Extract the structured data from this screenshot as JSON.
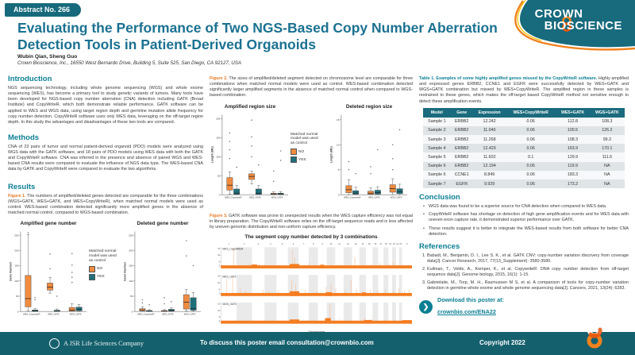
{
  "badge": "Abstract No. 266",
  "logo": {
    "line1": "CROWN",
    "line2": "BIOSCIENCE"
  },
  "title": "Evaluating the Performance of Two NGS-Based Copy Number Aberration Detection Tools in Patient-Derived Organoids",
  "authors": "Wubin Qian, Sheng Guo",
  "affiliation": "Crown Bioscience, Inc., 16550 West Bernardo Drive, Building 5, Suite 525, San Diego, CA 92127, USA",
  "sections": {
    "introduction": {
      "heading": "Introduction",
      "body": "NGS sequencing technology, including whole genome sequencing (WGS) and whole exome sequencing (WES), has become a primary tool to study genetic variants of tumors. Many tools have been developed for NGS-based copy number aberration (CNA) detection including GATK (Broad Institute) and CopyWriteR, which both demonstrate reliable performance. GATK software can be applied to WES and WGS data, using target region depth and germline mutation allele frequency for copy number detection. CopyWriteR software uses only WES data, leveraging on the off-target region depth. In this study the advantages and disadvantages of these two tools are compared."
    },
    "methods": {
      "heading": "Methods",
      "body": "CNA of 23 pairs of tumor and normal patient-derived organoid (PDO) models were analyzed using WGS data with the GATK software, and 18 pairs of PDO models using WES data with both the GATK and CopyWriteR software. CNA was inferred in the presence and absence of paired WGS and WES-based CNA results were compared to evaluate the influence of NGS data type. The WES-based CNA data by GATK and CopyWriteR were compared to evaluate the two algorithms."
    },
    "results": {
      "heading": "Results"
    },
    "conclusion": {
      "heading": "Conclusion",
      "bullets": [
        "WGS data was found to be a superior source for CNA detection when compared to WES data.",
        "CopyWriteR software has shortage on detection of high gene amplification events and for WES data with uneven exon capture rate, it demonstrated superior performance over GATK.",
        "These results suggest it is better to integrate the WES-based results from both software for better CNA detection."
      ]
    },
    "references": {
      "heading": "References",
      "items": [
        "Babadi, M., Benjamin, D. I., Lee S. K., et al. GATK CNV: copy-number variation discovery from coverage data[J]. Cancer Research, 2017, 77(13_Supplement): 3580-3580.",
        "Kuilman, T., Velds, A., Kemper, K., et al. CopywriteR: DNA copy number detection from off-target sequence data[J]. Genome biology, 2015, 16(1): 1-15.",
        "Gabrielaite, M., Torp, M. H., Rasmussen M S, et al. A comparison of tools for copy-number variation detection in germline whole exome and whole genome sequencing data[J]. Cancers, 2021, 13(24): 6283."
      ]
    }
  },
  "figure1": {
    "label": "Figure 1.",
    "caption": "The numbers of amplified/deleted genes detected are comparable for the three combinations (WGS+GATK, WES+GATK, and WES+CopyWriteR), when matched normal models were used as control. WES-based combination detected significantly more amplified genes in the absence of matched normal control, compared to WGS-based combination."
  },
  "figure2": {
    "label": "Figure 2.",
    "caption": "The sizes of amplified/deleted segment detected on chromosome level are comparable for three combinations when matched normal models were used as control. WES-based combination detected significantly larger amplified segments in the absence of matched normal control when compared to WGS-based combination."
  },
  "figure3": {
    "label": "Figure 3.",
    "caption": "GATK software was prone to unexpected results when the WES capture efficiency was not equal in library preparation. The CopyWriteR software relies on the off-target sequence reads and is less affected by uneven genomic distribution and non-uniform capture efficiency."
  },
  "legend": {
    "title": "Matched normal model was used as control",
    "no": "NO",
    "yes": "YES",
    "no_color": "#f08b3f",
    "yes_color": "#1f6f7b"
  },
  "table1": {
    "caption_bold": "Table 1. Examples of some highly amplified genes missed by the CopyWriteR software.",
    "caption_rest": " Highly amplified and expressed genes ERBB2, CCNE1 and EGFR were successfully detected by WES+GATK and WGS+GATK combination but missed by WES+CopyWriteR. The amplified region in these samples is restrained to these genes, which makes the off-target based CopyWriteR method not sensitive enough to detect these amplification events.",
    "headers": [
      "Model",
      "Gene",
      "Expression",
      "WES+CopyWriteR",
      "WES+GATK",
      "WGS+GATK"
    ],
    "rows": [
      [
        "Sample 1",
        "ERBB2",
        "12.242",
        "0.06",
        "112.8",
        "108.3"
      ],
      [
        "Sample 2",
        "ERBB2",
        "11.046",
        "0.06",
        "109.5",
        "126.2"
      ],
      [
        "Sample 3",
        "ERBB2",
        "11.268",
        "0.06",
        "108.3",
        "99.3"
      ],
      [
        "Sample 4",
        "ERBB2",
        "12.429",
        "0.06",
        "163.9",
        "170.1"
      ],
      [
        "Sample 5",
        "ERBB2",
        "11.602",
        "0.1",
        "129.9",
        "111.6"
      ],
      [
        "Sample 6",
        "ERBB2",
        "12.194",
        "0.06",
        "119.9",
        "NA"
      ],
      [
        "Sample 6",
        "CCNE1",
        "8.849",
        "0.06",
        "183.3",
        "NA"
      ],
      [
        "Sample 7",
        "EGFR",
        "9.929",
        "0.06",
        "173.2",
        "NA"
      ]
    ]
  },
  "download": {
    "line1": "Download this poster at:",
    "link": "crownbio.com/ENA22"
  },
  "footer": {
    "company": "A JSR Life Sciences Company",
    "contact": "To discuss this poster email consultation@crownbio.com",
    "copyright": "Copyright 2022"
  },
  "colors": {
    "teal_dark": "#15606d",
    "teal_heading": "#0b7f93",
    "title_blue": "#1b7191",
    "orange": "#f08b3f",
    "segment_orange": "#f47d21"
  },
  "chart_data": [
    {
      "id": "fig1-amplified",
      "type": "boxplot",
      "title": "Amplified gene number",
      "ylabel": "Gene Number",
      "ylim": [
        0,
        262
      ],
      "yticks": [
        0,
        50,
        100,
        150,
        200,
        250
      ],
      "categories": [
        "WES_CopywriteR",
        "WES_GATK",
        "WGS_GATK"
      ],
      "series": [
        {
          "name": "NO",
          "boxes": [
            {
              "lo": 2,
              "q1": 15,
              "med": 42,
              "q3": 118,
              "hi": 252
            },
            {
              "lo": 60,
              "q1": 70,
              "med": 80,
              "q3": 93,
              "hi": 112
            },
            {
              "lo": 0,
              "q1": 1,
              "med": 4,
              "q3": 13,
              "hi": 26
            }
          ]
        },
        {
          "name": "YES",
          "boxes": [
            {
              "lo": 0,
              "q1": 0,
              "med": 2,
              "q3": 5,
              "hi": 9
            },
            {
              "lo": 0,
              "q1": 0,
              "med": 1,
              "q3": 4,
              "hi": 8
            },
            {
              "lo": 0,
              "q1": 2,
              "med": 6,
              "q3": 14,
              "hi": 23
            }
          ]
        }
      ],
      "outliers": [
        [
          0,
          1,
          45
        ],
        [
          0,
          1,
          38
        ],
        [
          1,
          0,
          140
        ],
        [
          1,
          0,
          188
        ],
        [
          1,
          1,
          50
        ],
        [
          2,
          0,
          95
        ],
        [
          2,
          0,
          112
        ],
        [
          2,
          0,
          128
        ],
        [
          2,
          0,
          152
        ],
        [
          2,
          0,
          190
        ],
        [
          0,
          0,
          258
        ]
      ]
    },
    {
      "id": "fig1-deleted",
      "type": "boxplot",
      "title": "Deleted gene number",
      "ylabel": "Gene Number",
      "ylim": [
        0,
        262
      ],
      "yticks": [
        0,
        50,
        100,
        150,
        200,
        250
      ],
      "categories": [
        "WES_CopywriteR",
        "WES_GATK",
        "WGS_GATK"
      ],
      "series": [
        {
          "name": "NO",
          "boxes": [
            {
              "lo": 0,
              "q1": 2,
              "med": 5,
              "q3": 9,
              "hi": 15
            },
            {
              "lo": 0,
              "q1": 0,
              "med": 1,
              "q3": 3,
              "hi": 6
            },
            {
              "lo": 2,
              "q1": 8,
              "med": 30,
              "q3": 55,
              "hi": 72
            }
          ]
        },
        {
          "name": "YES",
          "boxes": [
            {
              "lo": 0,
              "q1": 0,
              "med": 1,
              "q3": 3,
              "hi": 6
            },
            {
              "lo": 0,
              "q1": 1,
              "med": 3,
              "q3": 7,
              "hi": 12
            },
            {
              "lo": 1,
              "q1": 4,
              "med": 10,
              "q3": 45,
              "hi": 62
            }
          ]
        }
      ],
      "outliers": [
        [
          0,
          0,
          28
        ],
        [
          0,
          0,
          38
        ],
        [
          1,
          0,
          25
        ],
        [
          1,
          1,
          32
        ],
        [
          2,
          0,
          182
        ],
        [
          2,
          0,
          232
        ],
        [
          2,
          1,
          150
        ],
        [
          0,
          1,
          22
        ],
        [
          1,
          0,
          45
        ]
      ]
    },
    {
      "id": "fig2-amplified",
      "type": "boxplot",
      "title": "Amplified region size",
      "ylabel": "Length (Mb)",
      "ylim": [
        0,
        210
      ],
      "yticks": [
        0,
        50,
        100,
        150,
        200
      ],
      "categories": [
        "WES_CopywriteR",
        "WES_GATK",
        "WGS_GATK"
      ],
      "series": [
        {
          "name": "NO",
          "boxes": [
            {
              "lo": 1,
              "q1": 12,
              "med": 25,
              "q3": 45,
              "hi": 60
            },
            {
              "lo": 28,
              "q1": 40,
              "med": 48,
              "q3": 55,
              "hi": 62
            },
            {
              "lo": 0,
              "q1": 0.5,
              "med": 2,
              "q3": 4,
              "hi": 8
            }
          ]
        },
        {
          "name": "YES",
          "boxes": [
            {
              "lo": 0,
              "q1": 1,
              "med": 4,
              "q3": 15,
              "hi": 24
            },
            {
              "lo": 0,
              "q1": 1,
              "med": 4,
              "q3": 15,
              "hi": 24
            },
            {
              "lo": 0,
              "q1": 0.5,
              "med": 2,
              "q3": 4,
              "hi": 8
            }
          ]
        }
      ],
      "outliers": [
        [
          0,
          0,
          95
        ],
        [
          0,
          0,
          118
        ],
        [
          0,
          0,
          140
        ],
        [
          0,
          0,
          162
        ],
        [
          1,
          0,
          100
        ],
        [
          1,
          0,
          128
        ],
        [
          1,
          0,
          152
        ],
        [
          1,
          0,
          196
        ],
        [
          0,
          1,
          72
        ],
        [
          1,
          1,
          78
        ],
        [
          2,
          0,
          35
        ],
        [
          2,
          0,
          62
        ],
        [
          2,
          1,
          90
        ],
        [
          2,
          1,
          115
        ]
      ]
    },
    {
      "id": "fig2-deleted",
      "type": "boxplot",
      "title": "Deleted region size",
      "ylabel": "Length (Mb)",
      "ylim": [
        0,
        16
      ],
      "yticks": [
        0,
        5,
        10,
        15
      ],
      "categories": [
        "WES_CopywriteR",
        "WES_GATK",
        "WGS_GATK"
      ],
      "series": [
        {
          "name": "NO",
          "boxes": [
            {
              "lo": 0,
              "q1": 0.4,
              "med": 1,
              "q3": 1.8,
              "hi": 3
            },
            {
              "lo": 0,
              "q1": 0.1,
              "med": 0.3,
              "q3": 0.7,
              "hi": 1.4
            },
            {
              "lo": 0,
              "q1": 0.5,
              "med": 1.2,
              "q3": 2,
              "hi": 3.2
            }
          ]
        },
        {
          "name": "YES",
          "boxes": [
            {
              "lo": 0,
              "q1": 0.1,
              "med": 0.3,
              "q3": 0.8,
              "hi": 1.5
            },
            {
              "lo": 0,
              "q1": 0.1,
              "med": 0.4,
              "q3": 0.9,
              "hi": 1.6
            },
            {
              "lo": 0,
              "q1": 0.2,
              "med": 0.6,
              "q3": 1.2,
              "hi": 2.1
            }
          ]
        }
      ],
      "outliers": [
        [
          0,
          0,
          5
        ],
        [
          0,
          0,
          6.6
        ],
        [
          1,
          0,
          4.2
        ],
        [
          1,
          0,
          5.6
        ],
        [
          2,
          0,
          5
        ],
        [
          2,
          0,
          7.2
        ],
        [
          2,
          0,
          10
        ],
        [
          2,
          1,
          13
        ],
        [
          0,
          1,
          4.2
        ],
        [
          1,
          1,
          9
        ]
      ]
    },
    {
      "id": "fig3-segments",
      "type": "segment-bars",
      "title": "The segment copy number detected by 3 combinations",
      "xlabel": "Chromosome",
      "ymax": 16,
      "yticks": [
        2,
        5,
        10,
        15
      ],
      "chromosomes": [
        "1",
        "2",
        "3",
        "4",
        "5",
        "6",
        "7",
        "8",
        "9",
        "10",
        "11",
        "12",
        "13",
        "14",
        "15",
        "16",
        "17",
        "18",
        "19",
        "20",
        "21",
        "22",
        "X"
      ],
      "chrom_widths": [
        8.0,
        7.8,
        6.4,
        6.1,
        5.8,
        5.5,
        5.1,
        4.7,
        4.5,
        4.3,
        4.3,
        4.3,
        3.7,
        3.4,
        3.3,
        2.9,
        2.7,
        2.5,
        1.9,
        2.0,
        1.5,
        1.6,
        5.0
      ],
      "panels": [
        {
          "name": "WES_CopyWriteR",
          "bumps": [
            [
              0.16,
              0.19,
              2.9
            ],
            [
              0.36,
              0.41,
              3.3
            ],
            [
              0.52,
              0.54,
              2.8
            ]
          ],
          "spikes": [
            [
              0.065,
              15
            ],
            [
              0.15,
              4
            ],
            [
              0.2,
              3.5
            ],
            [
              0.375,
              14
            ],
            [
              0.385,
              8
            ],
            [
              0.46,
              4
            ],
            [
              0.7,
              8.5
            ],
            [
              0.83,
              4
            ],
            [
              0.875,
              3.5
            ],
            [
              0.9,
              5
            ]
          ]
        },
        {
          "name": "WES_GATK",
          "bumps": [
            [
              0.36,
              0.41,
              3.6
            ],
            [
              0.55,
              0.58,
              2.9
            ],
            [
              0.74,
              0.76,
              2.8
            ]
          ],
          "spikes": [
            [
              0.03,
              13
            ],
            [
              0.06,
              14
            ],
            [
              0.1,
              6
            ],
            [
              0.13,
              4
            ],
            [
              0.22,
              5
            ],
            [
              0.25,
              4
            ],
            [
              0.3,
              4.5
            ],
            [
              0.37,
              12
            ],
            [
              0.39,
              9
            ],
            [
              0.44,
              5
            ],
            [
              0.5,
              4
            ],
            [
              0.55,
              7
            ],
            [
              0.575,
              9
            ],
            [
              0.6,
              6
            ],
            [
              0.65,
              5
            ],
            [
              0.68,
              12
            ],
            [
              0.71,
              5.5
            ],
            [
              0.74,
              4
            ],
            [
              0.78,
              5
            ],
            [
              0.82,
              4.5
            ],
            [
              0.86,
              5
            ],
            [
              0.9,
              4
            ],
            [
              0.93,
              6
            ],
            [
              0.96,
              4.5
            ],
            [
              0.985,
              5
            ]
          ]
        },
        {
          "name": "WGS_GATK",
          "bumps": [
            [
              0.36,
              0.41,
              3.2
            ],
            [
              0.545,
              0.575,
              4.2
            ],
            [
              0.75,
              0.79,
              2.8
            ],
            [
              0.95,
              1.0,
              2.7
            ]
          ],
          "spikes": [
            [
              0.57,
              15
            ],
            [
              0.62,
              3.5
            ],
            [
              0.75,
              4.5
            ],
            [
              0.79,
              3.5
            ],
            [
              0.86,
              3
            ]
          ]
        }
      ]
    }
  ]
}
